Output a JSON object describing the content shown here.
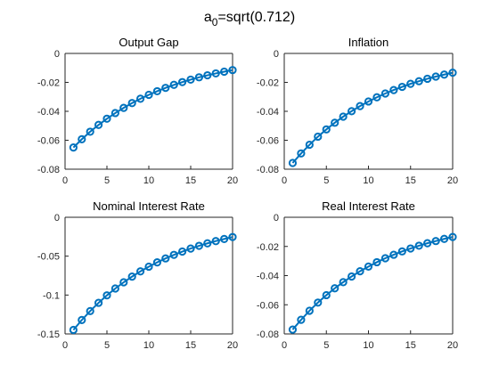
{
  "figure": {
    "title_base": "a",
    "title_sub": "0",
    "title_rest": "=sqrt(0.712)"
  },
  "colors": {
    "series": "#0072BD"
  },
  "chart_data": [
    {
      "type": "line",
      "title": "Output Gap",
      "xlim": [
        0,
        20
      ],
      "ylim": [
        -0.08,
        0
      ],
      "xticks": [
        0,
        5,
        10,
        15,
        20
      ],
      "yticks": [
        -0.08,
        -0.06,
        -0.04,
        -0.02,
        0
      ],
      "ytick_labels": [
        "-0.08",
        "-0.06",
        "-0.04",
        "-0.02",
        "0"
      ],
      "marker": "circle",
      "x": [
        1,
        2,
        3,
        4,
        5,
        6,
        7,
        8,
        9,
        10,
        11,
        12,
        13,
        14,
        15,
        16,
        17,
        18,
        19,
        20
      ],
      "y": [
        -0.065,
        -0.0593,
        -0.0541,
        -0.0494,
        -0.0451,
        -0.0412,
        -0.0376,
        -0.0343,
        -0.0313,
        -0.0286,
        -0.0261,
        -0.0238,
        -0.0217,
        -0.0198,
        -0.0181,
        -0.0165,
        -0.0151,
        -0.0138,
        -0.0126,
        -0.0115
      ]
    },
    {
      "type": "line",
      "title": "Inflation",
      "xlim": [
        0,
        20
      ],
      "ylim": [
        -0.08,
        0
      ],
      "xticks": [
        0,
        5,
        10,
        15,
        20
      ],
      "yticks": [
        -0.08,
        -0.06,
        -0.04,
        -0.02,
        0
      ],
      "ytick_labels": [
        "-0.08",
        "-0.06",
        "-0.04",
        "-0.02",
        "0"
      ],
      "marker": "circle",
      "x": [
        1,
        2,
        3,
        4,
        5,
        6,
        7,
        8,
        9,
        10,
        11,
        12,
        13,
        14,
        15,
        16,
        17,
        18,
        19,
        20
      ],
      "y": [
        -0.0757,
        -0.0691,
        -0.0631,
        -0.0575,
        -0.0525,
        -0.0479,
        -0.0437,
        -0.0399,
        -0.0364,
        -0.0332,
        -0.0303,
        -0.0277,
        -0.0253,
        -0.0231,
        -0.021,
        -0.0192,
        -0.0175,
        -0.016,
        -0.0146,
        -0.0133
      ]
    },
    {
      "type": "line",
      "title": "Nominal Interest Rate",
      "xlim": [
        0,
        20
      ],
      "ylim": [
        -0.15,
        0
      ],
      "xticks": [
        0,
        5,
        10,
        15,
        20
      ],
      "yticks": [
        -0.15,
        -0.1,
        -0.05,
        0
      ],
      "ytick_labels": [
        "-0.15",
        "-0.1",
        "-0.05",
        "0"
      ],
      "marker": "circle",
      "x": [
        1,
        2,
        3,
        4,
        5,
        6,
        7,
        8,
        9,
        10,
        11,
        12,
        13,
        14,
        15,
        16,
        17,
        18,
        19,
        20
      ],
      "y": [
        -0.1448,
        -0.1321,
        -0.1206,
        -0.11,
        -0.1004,
        -0.0916,
        -0.0836,
        -0.0763,
        -0.0696,
        -0.0635,
        -0.058,
        -0.0529,
        -0.0483,
        -0.0441,
        -0.0402,
        -0.0367,
        -0.0335,
        -0.0306,
        -0.0279,
        -0.0254
      ]
    },
    {
      "type": "line",
      "title": "Real Interest Rate",
      "xlim": [
        0,
        20
      ],
      "ylim": [
        -0.08,
        0
      ],
      "xticks": [
        0,
        5,
        10,
        15,
        20
      ],
      "yticks": [
        -0.08,
        -0.06,
        -0.04,
        -0.02,
        0
      ],
      "ytick_labels": [
        "-0.08",
        "-0.06",
        "-0.04",
        "-0.02",
        "0"
      ],
      "marker": "circle",
      "x": [
        1,
        2,
        3,
        4,
        5,
        6,
        7,
        8,
        9,
        10,
        11,
        12,
        13,
        14,
        15,
        16,
        17,
        18,
        19,
        20
      ],
      "y": [
        -0.077,
        -0.0703,
        -0.0641,
        -0.0585,
        -0.0534,
        -0.0487,
        -0.0445,
        -0.0406,
        -0.037,
        -0.0338,
        -0.0308,
        -0.0281,
        -0.0257,
        -0.0234,
        -0.0214,
        -0.0195,
        -0.0178,
        -0.0163,
        -0.0148,
        -0.0135
      ]
    }
  ]
}
